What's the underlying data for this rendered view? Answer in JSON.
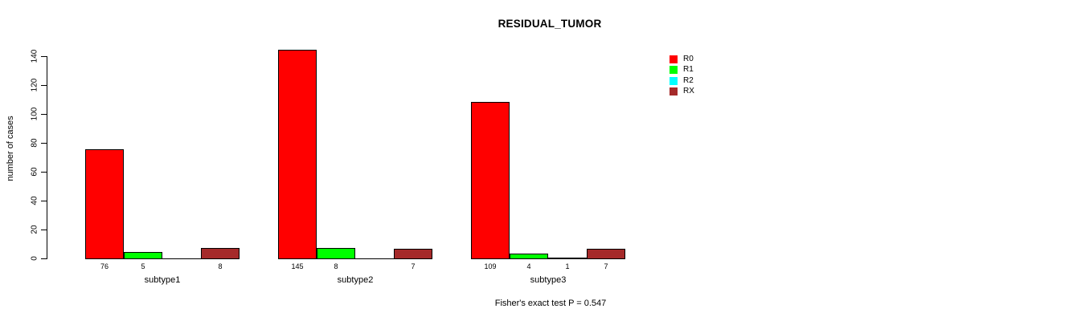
{
  "chart_data": {
    "type": "bar",
    "title": "RESIDUAL_TUMOR",
    "ylabel": "number of cases",
    "xlabel": "",
    "annotation": "Fisher's exact test P = 0.547",
    "categories": [
      "subtype1",
      "subtype2",
      "subtype3"
    ],
    "series": [
      {
        "name": "R0",
        "color": "#FF0000",
        "values": [
          76,
          145,
          109
        ]
      },
      {
        "name": "R1",
        "color": "#00FF00",
        "values": [
          5,
          8,
          4
        ]
      },
      {
        "name": "R2",
        "color": "#00FFFF",
        "values": [
          0,
          0,
          1
        ]
      },
      {
        "name": "RX",
        "color": "#A52A2A",
        "values": [
          8,
          7,
          7
        ]
      }
    ],
    "value_labels": [
      [
        "76",
        "5",
        "",
        "8"
      ],
      [
        "145",
        "8",
        "",
        "7"
      ],
      [
        "109",
        "4",
        "1",
        "7"
      ]
    ],
    "yticks": [
      0,
      20,
      40,
      60,
      80,
      100,
      120,
      140
    ],
    "ylim": [
      0,
      145
    ],
    "grid": false,
    "legend_position": "right",
    "axis_color": "#000000",
    "text_color": "#000000",
    "background": "#FFFFFF"
  }
}
